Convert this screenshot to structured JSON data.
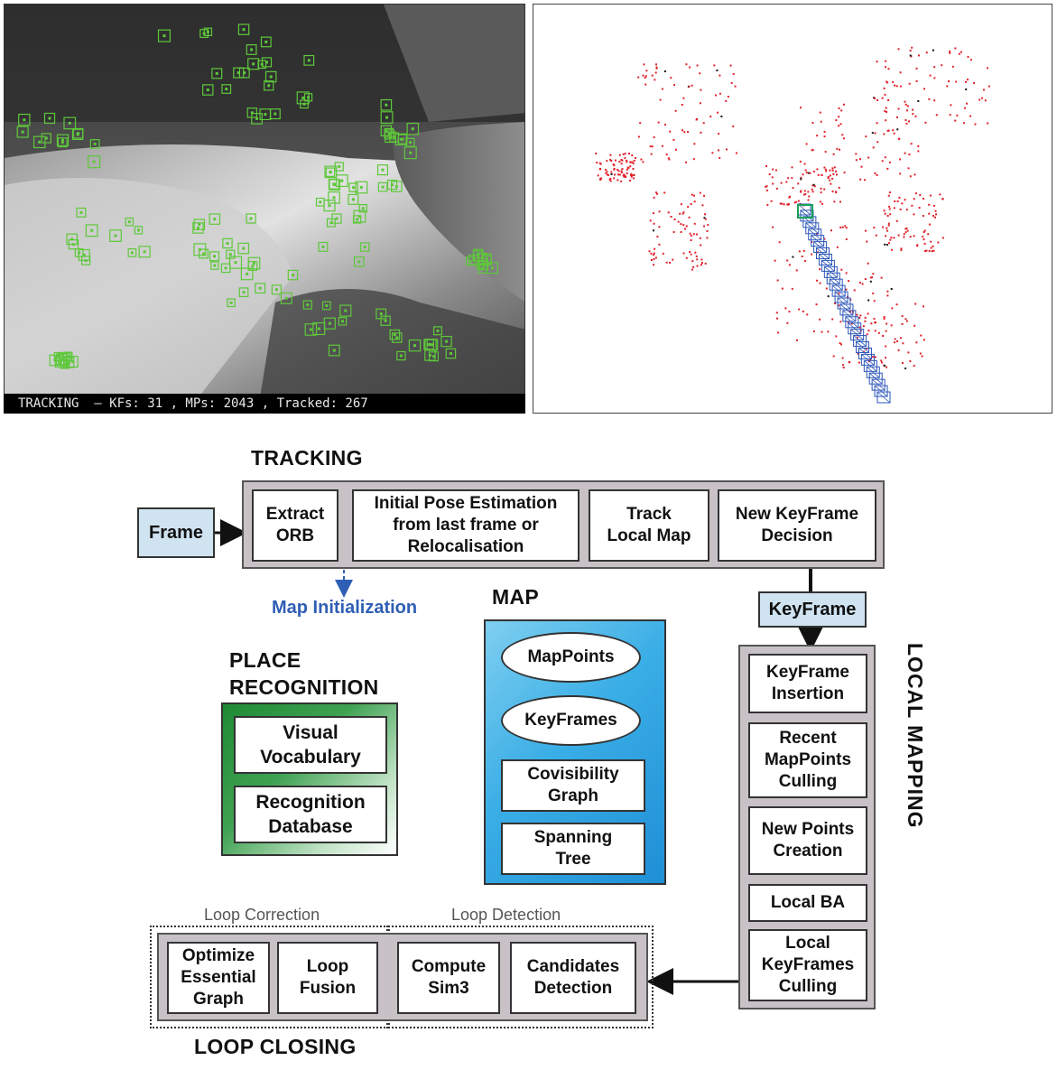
{
  "camera_view": {
    "status_text": "TRACKING  — KFs: 31 , MPs: 2043 , Tracked: 267"
  },
  "diagram": {
    "tracking": {
      "title": "TRACKING",
      "input": "Frame",
      "steps": [
        "Extract\nORB",
        "Initial Pose Estimation\nfrom last frame or\nRelocalisation",
        "Track\nLocal Map",
        "New KeyFrame\nDecision"
      ]
    },
    "map_initialization": "Map Initialization",
    "keyframe_label": "KeyFrame",
    "map": {
      "title": "MAP",
      "ellipses": [
        "MapPoints",
        "KeyFrames"
      ],
      "boxes": [
        "Covisibility\nGraph",
        "Spanning\nTree"
      ]
    },
    "place_recognition": {
      "title": "PLACE\nRECOGNITION",
      "boxes": [
        "Visual\nVocabulary",
        "Recognition\nDatabase"
      ]
    },
    "local_mapping": {
      "title": "LOCAL MAPPING",
      "steps": [
        "KeyFrame\nInsertion",
        "Recent\nMapPoints\nCulling",
        "New Points\nCreation",
        "Local BA",
        "Local\nKeyFrames\nCulling"
      ]
    },
    "loop_closing": {
      "title": "LOOP CLOSING",
      "loop_correction": {
        "label": "Loop Correction",
        "steps": [
          "Optimize\nEssential\nGraph",
          "Loop\nFusion"
        ]
      },
      "loop_detection": {
        "label": "Loop Detection",
        "steps": [
          "Compute\nSim3",
          "Candidates\nDetection"
        ]
      }
    },
    "colors": {
      "feature_green": "#5ec83a",
      "map_point_red": "#e0202a",
      "keyframe_blue": "#2a55b8",
      "map_blue": "#3aaee6",
      "place_green": "#1e8a34",
      "box_gray": "#c8c2c6",
      "light_blue": "#cfe3f1",
      "map_init_blue": "#2f5fb5"
    }
  }
}
